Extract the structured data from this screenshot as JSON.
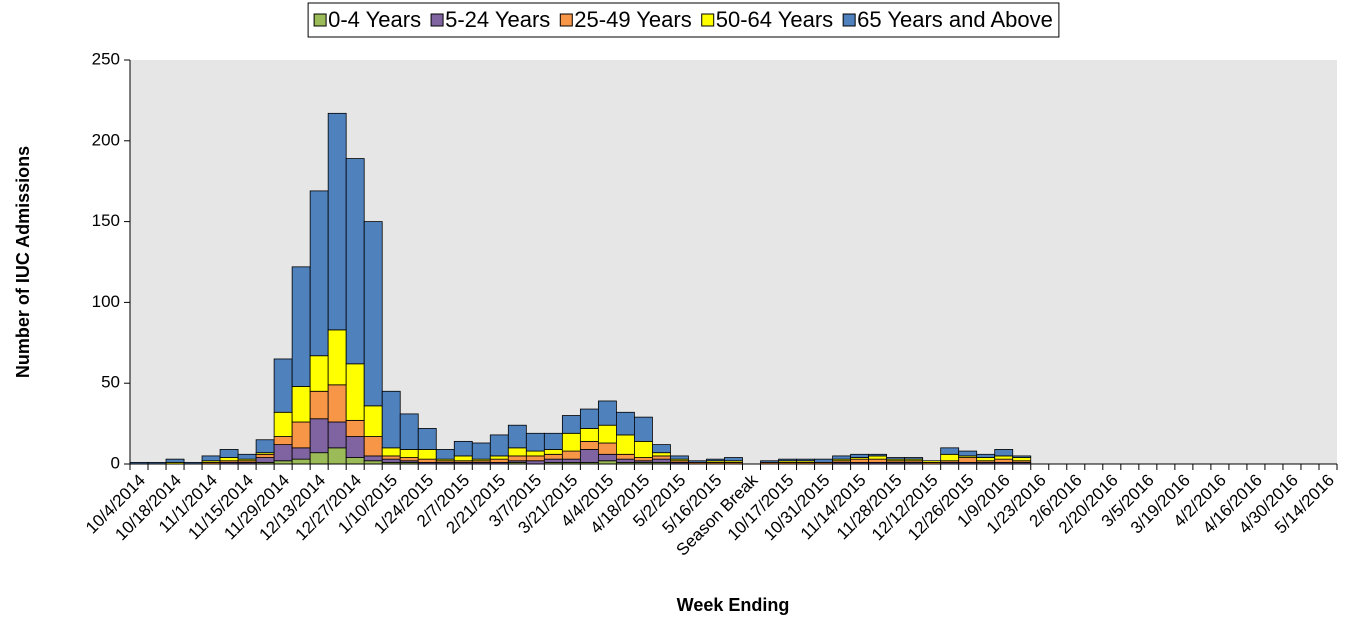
{
  "chart_data": {
    "type": "stacked_bar",
    "x_label": "Week Ending",
    "y_label": "Number of IUC Admissions",
    "categories": [
      "10/4/2014",
      null,
      "10/18/2014",
      null,
      "11/1/2014",
      null,
      "11/15/2014",
      null,
      "11/29/2014",
      null,
      "12/13/2014",
      null,
      "12/27/2014",
      null,
      "1/10/2015",
      null,
      "1/24/2015",
      null,
      "2/7/2015",
      null,
      "2/21/2015",
      null,
      "3/7/2015",
      null,
      "3/21/2015",
      null,
      "4/4/2015",
      null,
      "4/18/2015",
      null,
      "5/2/2015",
      null,
      "5/16/2015",
      null,
      "Season Break",
      null,
      "10/17/2015",
      null,
      "10/31/2015",
      null,
      "11/14/2015",
      null,
      "11/28/2015",
      null,
      "12/12/2015",
      null,
      "12/26/2015",
      null,
      "1/9/2016",
      null,
      "1/23/2016",
      null,
      "2/6/2016",
      null,
      "2/20/2016",
      null,
      "3/5/2016",
      null,
      "3/19/2016",
      null,
      "4/2/2016",
      null,
      "4/16/2016",
      null,
      "4/30/2016",
      null,
      "5/14/2016"
    ],
    "series": [
      {
        "name": "0-4 Years",
        "color": "#9bbb59",
        "values": [
          0,
          0,
          0,
          0,
          0,
          0,
          0,
          1,
          2,
          3,
          7,
          10,
          4,
          2,
          1,
          1,
          0,
          0,
          0,
          0,
          0,
          1,
          0,
          1,
          1,
          1,
          2,
          1,
          1,
          1,
          0,
          0,
          0,
          0,
          0,
          0,
          0,
          0,
          0,
          0,
          0,
          0,
          0,
          0,
          0,
          0,
          0,
          0,
          0,
          0,
          0,
          0,
          0,
          0,
          0,
          0,
          0,
          0,
          0,
          0,
          0,
          0,
          0,
          0,
          0,
          0,
          0
        ]
      },
      {
        "name": "5-24 Years",
        "color": "#8064a2",
        "values": [
          0,
          0,
          0,
          0,
          0,
          1,
          1,
          3,
          10,
          7,
          21,
          16,
          13,
          3,
          2,
          1,
          1,
          1,
          1,
          1,
          1,
          1,
          2,
          2,
          2,
          8,
          4,
          2,
          1,
          2,
          1,
          0,
          0,
          0,
          0,
          0,
          0,
          0,
          0,
          1,
          1,
          1,
          1,
          1,
          0,
          1,
          1,
          1,
          1,
          1,
          0,
          0,
          0,
          0,
          0,
          0,
          0,
          0,
          0,
          0,
          0,
          0,
          0,
          0,
          0,
          0,
          0
        ]
      },
      {
        "name": "25-49 Years",
        "color": "#f79646",
        "values": [
          0,
          0,
          0,
          0,
          1,
          1,
          1,
          2,
          5,
          16,
          17,
          23,
          10,
          12,
          2,
          2,
          2,
          1,
          1,
          1,
          2,
          3,
          3,
          3,
          5,
          5,
          7,
          3,
          2,
          2,
          1,
          1,
          1,
          1,
          0,
          1,
          1,
          1,
          1,
          1,
          2,
          2,
          1,
          1,
          1,
          1,
          3,
          1,
          2,
          1,
          0,
          0,
          0,
          0,
          0,
          0,
          0,
          0,
          0,
          0,
          0,
          0,
          0,
          0,
          0,
          0,
          0
        ]
      },
      {
        "name": "50-64 Years",
        "color": "#ffff00",
        "values": [
          0,
          0,
          1,
          0,
          1,
          2,
          1,
          1,
          15,
          22,
          22,
          34,
          35,
          19,
          5,
          5,
          6,
          1,
          3,
          1,
          2,
          5,
          3,
          3,
          11,
          8,
          11,
          12,
          10,
          2,
          1,
          0,
          1,
          1,
          0,
          0,
          1,
          1,
          0,
          1,
          1,
          2,
          1,
          1,
          1,
          4,
          1,
          2,
          2,
          2,
          0,
          0,
          0,
          0,
          0,
          0,
          0,
          0,
          0,
          0,
          0,
          0,
          0,
          0,
          0,
          0,
          0
        ]
      },
      {
        "name": "65 Years and Above",
        "color": "#4f81bd",
        "values": [
          1,
          1,
          2,
          1,
          3,
          5,
          3,
          8,
          33,
          74,
          102,
          134,
          127,
          114,
          35,
          22,
          13,
          6,
          9,
          10,
          13,
          14,
          11,
          10,
          11,
          12,
          15,
          14,
          15,
          5,
          2,
          1,
          1,
          2,
          0,
          1,
          1,
          1,
          2,
          2,
          2,
          1,
          1,
          1,
          0,
          4,
          3,
          2,
          4,
          1,
          0,
          0,
          0,
          0,
          0,
          0,
          0,
          0,
          0,
          0,
          0,
          0,
          0,
          0,
          0,
          0,
          0
        ]
      }
    ],
    "ylim": [
      0,
      250
    ],
    "yticks": [
      0,
      50,
      100,
      150,
      200,
      250
    ],
    "plot_background": "#e6e6e6",
    "legend": "top"
  }
}
